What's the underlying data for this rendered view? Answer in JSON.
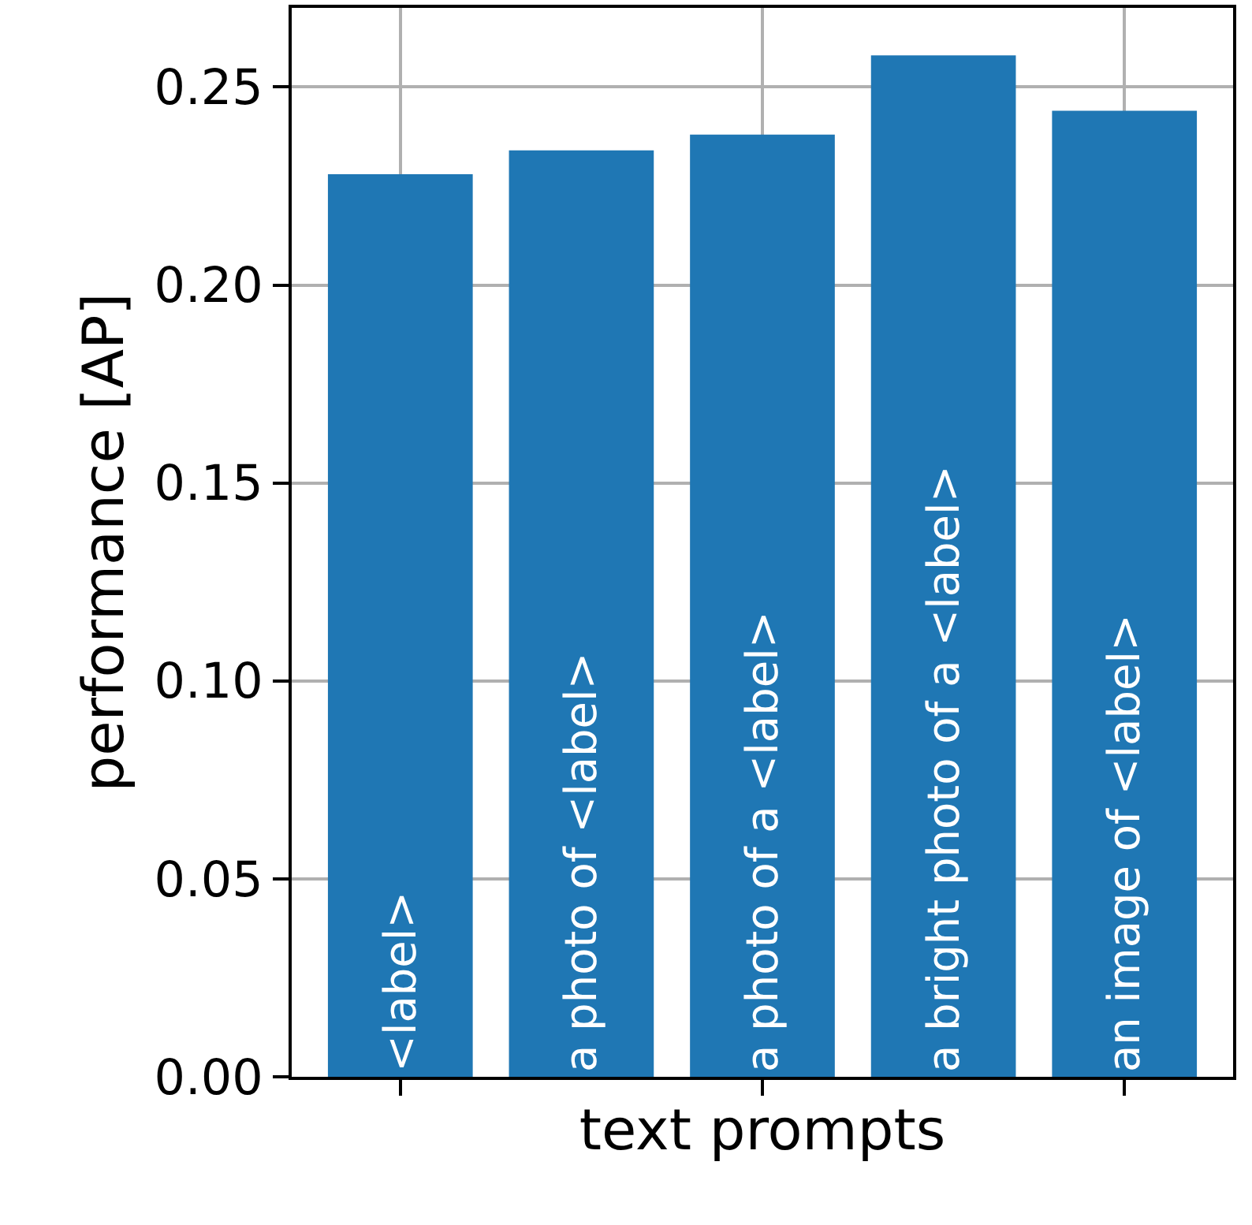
{
  "chart_data": {
    "type": "bar",
    "xlabel": "text prompts",
    "ylabel": "performance [AP]",
    "categories": [
      "<label>",
      "a photo of <label>",
      "a photo of a <label>",
      "a bright photo of a <label>",
      "an image of <label>"
    ],
    "values": [
      0.228,
      0.234,
      0.238,
      0.258,
      0.244
    ],
    "color": "#1f77b4",
    "ylim": [
      0,
      0.27
    ],
    "yticks": [
      {
        "value": 0,
        "label": "0.00"
      },
      {
        "value": 0.05,
        "label": "0.05"
      },
      {
        "value": 0.1,
        "label": "0.10"
      },
      {
        "value": 0.15,
        "label": "0.15"
      },
      {
        "value": 0.2,
        "label": "0.20"
      },
      {
        "value": 0.25,
        "label": "0.25"
      }
    ],
    "grid": true,
    "tick_labels": "y"
  }
}
